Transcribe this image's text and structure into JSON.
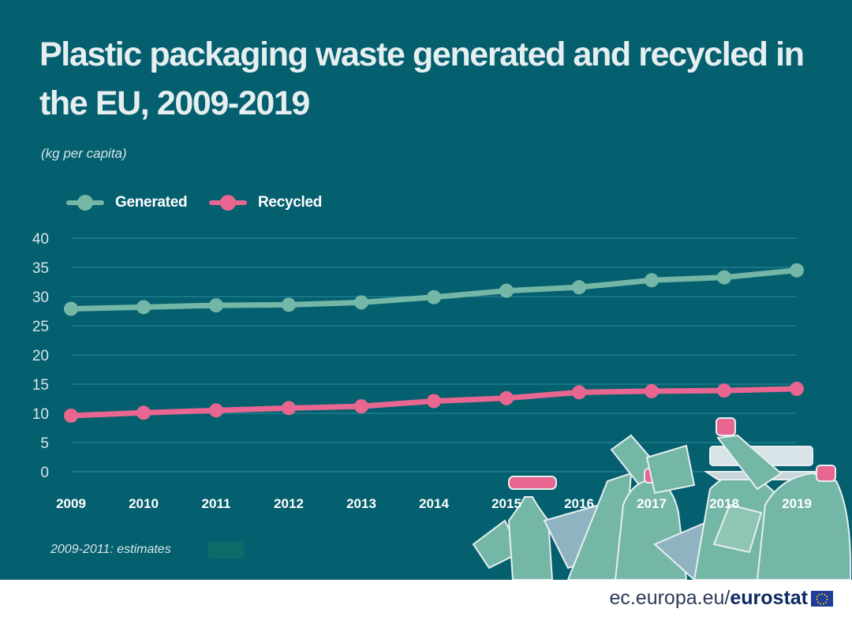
{
  "header": {
    "title": "Plastic packaging waste generated and recycled in the EU, 2009-2019",
    "subtitle": "(kg per capita)"
  },
  "legend": [
    {
      "label": "Generated",
      "color": "#74b7a6"
    },
    {
      "label": "Recycled",
      "color": "#e8668f"
    }
  ],
  "note": "2009-2011: estimates",
  "footer": {
    "site": "ec.europa.eu/",
    "brand": "eurostat",
    "logo_icon": "eu-flag-icon"
  },
  "colors": {
    "background": "#045f6e",
    "generated": "#74b7a6",
    "recycled": "#e8668f",
    "grid": "#2a8da0"
  },
  "chart_data": {
    "type": "line",
    "title": "Plastic packaging waste generated and recycled in the EU, 2009-2019",
    "subtitle": "(kg per capita)",
    "xlabel": "",
    "ylabel": "",
    "categories": [
      "2009",
      "2010",
      "2011",
      "2012",
      "2013",
      "2014",
      "2015",
      "2016",
      "2017",
      "2018",
      "2019"
    ],
    "series": [
      {
        "name": "Generated",
        "values": [
          27.9,
          28.2,
          28.5,
          28.6,
          29.0,
          29.9,
          31.0,
          31.6,
          32.8,
          33.3,
          34.5
        ]
      },
      {
        "name": "Recycled",
        "values": [
          9.6,
          10.1,
          10.5,
          10.9,
          11.2,
          12.1,
          12.6,
          13.6,
          13.8,
          13.9,
          14.2
        ]
      }
    ],
    "ylim": [
      0,
      40
    ],
    "yticks": [
      0,
      5,
      10,
      15,
      20,
      25,
      30,
      35,
      40
    ],
    "grid": true,
    "legend_position": "top-left"
  }
}
